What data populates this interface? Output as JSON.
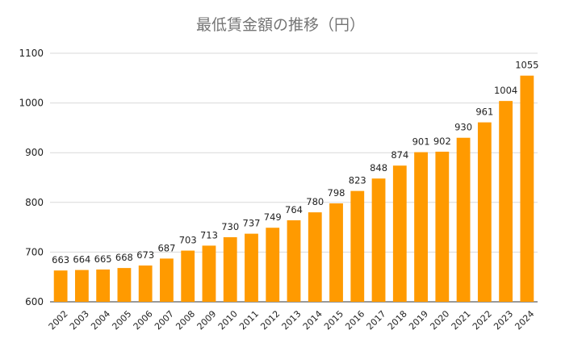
{
  "chart_data": {
    "type": "bar",
    "title": "最低賃金額の推移（円）",
    "xlabel": "",
    "ylabel": "",
    "ylim": [
      600,
      1100
    ],
    "yticks": [
      600,
      700,
      800,
      900,
      1000,
      1100
    ],
    "grid": true,
    "legend": "none",
    "bar_color": "#FF9A00",
    "categories": [
      "2002",
      "2003",
      "2004",
      "2005",
      "2006",
      "2007",
      "2008",
      "2009",
      "2010",
      "2011",
      "2012",
      "2013",
      "2014",
      "2015",
      "2016",
      "2017",
      "2018",
      "2019",
      "2020",
      "2021",
      "2022",
      "2023",
      "2024"
    ],
    "values": [
      663,
      664,
      665,
      668,
      673,
      687,
      703,
      713,
      730,
      737,
      749,
      764,
      780,
      798,
      823,
      848,
      874,
      901,
      902,
      930,
      961,
      1004,
      1055
    ]
  }
}
